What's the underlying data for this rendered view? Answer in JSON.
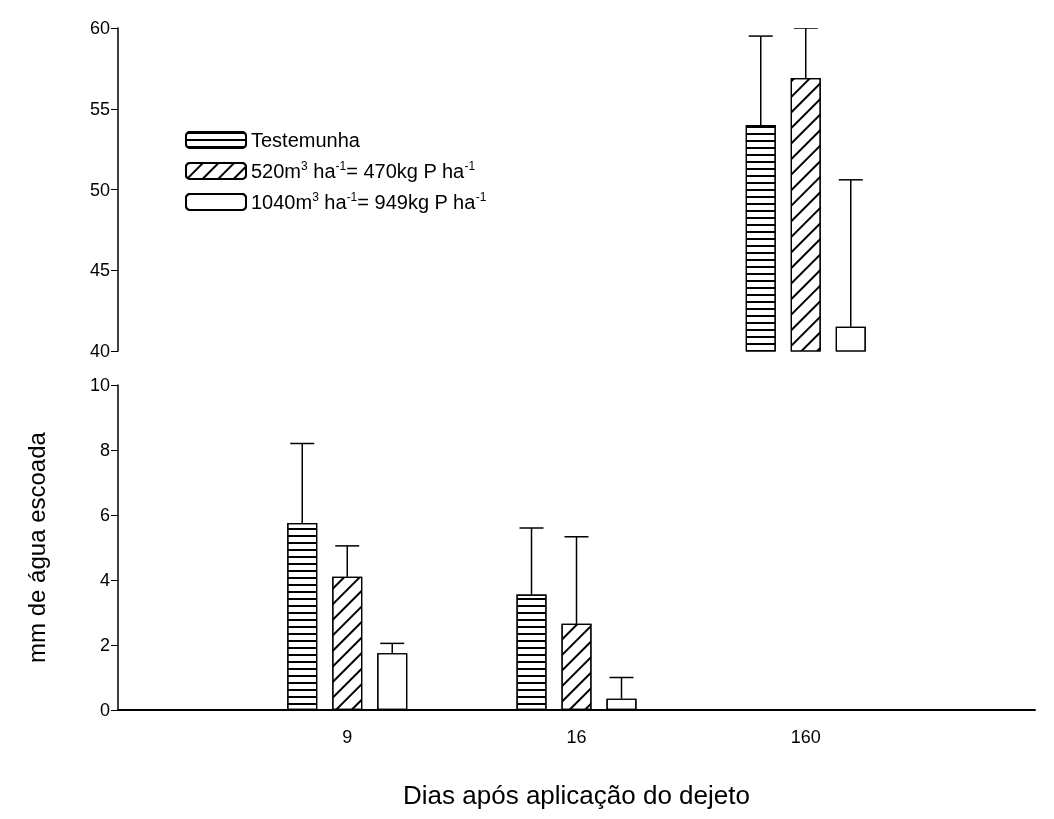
{
  "chart_data": [
    {
      "type": "bar",
      "categories": [
        null,
        "9",
        "16",
        "160",
        null
      ],
      "legend": "top left",
      "tick_labels": "y",
      "grid": false,
      "ylim": [
        40,
        60
      ],
      "yticks": [
        40,
        45,
        50,
        55,
        60
      ],
      "series": [
        {
          "name": "Testemunha",
          "color": "#ffffff",
          "values": [
            null,
            null,
            null,
            54,
            null
          ],
          "errors": [
            null,
            null,
            null,
            [
              54,
              59.5
            ],
            null
          ]
        },
        {
          "name": "520m$^{3}$ ha$^{-1}$= 470kg P ha$^{-1}$",
          "color": "#ffffff",
          "values": [
            null,
            null,
            null,
            56.9,
            null
          ],
          "errors": [
            null,
            null,
            null,
            [
              56.9,
              60
            ],
            null
          ]
        },
        {
          "name": "1040m$^{3}$ ha$^{-1}$= 949kg P ha$^{-1}$",
          "color": "#ffffff",
          "values": [
            null,
            null,
            null,
            41.5,
            null
          ],
          "errors": [
            null,
            null,
            null,
            [
              41.5,
              50.6
            ],
            null
          ]
        }
      ]
    },
    {
      "type": "bar",
      "xlabel": "Dias após aplicação do dejeto",
      "ylabel": "mm de água escoada",
      "categories": [
        null,
        "9",
        "16",
        "160",
        null
      ],
      "grid": false,
      "ylim": [
        0,
        10
      ],
      "yticks": [
        0,
        2,
        4,
        6,
        8,
        10
      ],
      "series": [
        {
          "color": "#ffffff",
          "values": [
            null,
            5.75,
            3.55,
            null,
            null
          ],
          "errors": [
            null,
            [
              5.75,
              8.2
            ],
            [
              3.55,
              5.6
            ],
            null,
            null
          ]
        },
        {
          "color": "#ffffff",
          "values": [
            null,
            4.1,
            2.65,
            null,
            null
          ],
          "errors": [
            null,
            [
              4.1,
              5.05
            ],
            [
              2.65,
              5.33
            ],
            null,
            null
          ]
        },
        {
          "color": "#ffffff",
          "values": [
            null,
            1.75,
            0.35,
            null,
            null
          ],
          "errors": [
            null,
            [
              1.75,
              2.05
            ],
            [
              0.35,
              1.0
            ],
            null,
            null
          ]
        }
      ]
    }
  ]
}
